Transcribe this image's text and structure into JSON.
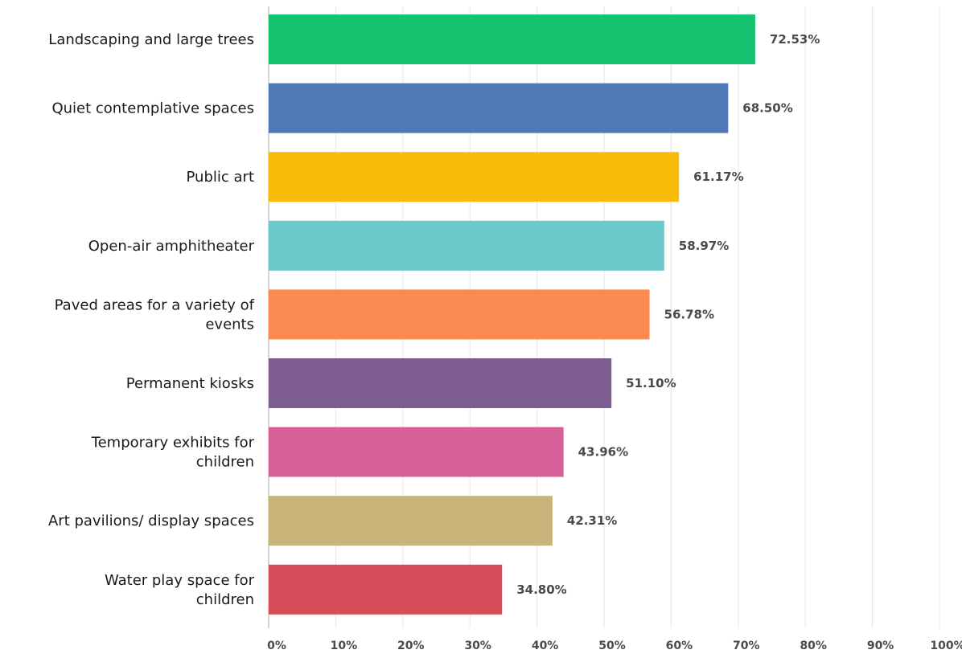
{
  "chart_data": {
    "type": "bar",
    "orientation": "horizontal",
    "categories": [
      [
        "Landscaping and large trees"
      ],
      [
        "Quiet contemplative spaces"
      ],
      [
        "Public art"
      ],
      [
        "Open-air amphitheater"
      ],
      [
        "Paved areas for a variety of",
        "events"
      ],
      [
        "Permanent kiosks"
      ],
      [
        "Temporary exhibits for",
        "children"
      ],
      [
        "Art pavilions/ display spaces"
      ],
      [
        "Water play space for",
        "children"
      ]
    ],
    "values": [
      72.53,
      68.5,
      61.17,
      58.97,
      56.78,
      51.1,
      43.96,
      42.31,
      34.8
    ],
    "value_labels": [
      "72.53%",
      "68.50%",
      "61.17%",
      "58.97%",
      "56.78%",
      "51.10%",
      "43.96%",
      "42.31%",
      "34.80%"
    ],
    "colors": [
      "#14c26f",
      "#4f79b6",
      "#f8bd0a",
      "#6bc8cb",
      "#fb8a50",
      "#7c5c91",
      "#d55f96",
      "#c8b479",
      "#d84c5a"
    ],
    "xlim": [
      0,
      100
    ],
    "ticks": [
      "0%",
      "10%",
      "20%",
      "30%",
      "40%",
      "50%",
      "60%",
      "70%",
      "80%",
      "90%",
      "100%"
    ],
    "grid": true,
    "legend": "none",
    "title": "",
    "xlabel": "",
    "ylabel": ""
  }
}
